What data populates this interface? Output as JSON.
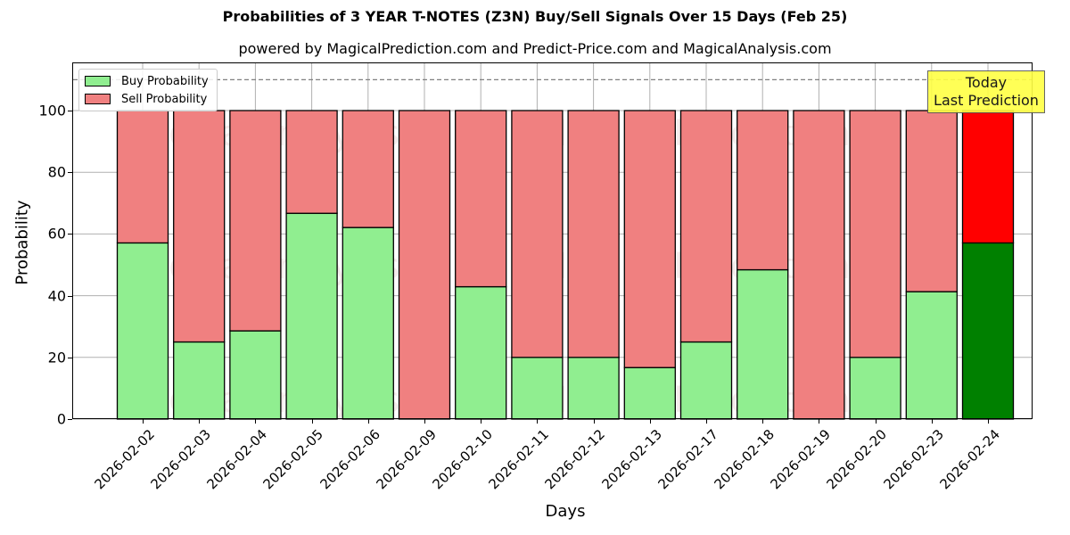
{
  "header": {
    "title": "Probabilities of 3 YEAR T-NOTES (Z3N) Buy/Sell Signals Over 15 Days (Feb 25)",
    "subtitle": "powered by MagicalPrediction.com and Predict-Price.com and MagicalAnalysis.com"
  },
  "legend": {
    "buy_label": "Buy Probability",
    "sell_label": "Sell Probability"
  },
  "annotation": {
    "line1": "Today",
    "line2": "Last Prediction"
  },
  "watermarks": [
    "MagicalAnalysis.com",
    "MagicalPrediction.com"
  ],
  "colors": {
    "buy": "#90ee90",
    "sell": "#f08080",
    "buy_today": "#008000",
    "sell_today": "#ff0000",
    "annotation_bg": "#ffff44"
  },
  "chart_data": {
    "type": "bar",
    "stacked": true,
    "title": "Probabilities of 3 YEAR T-NOTES (Z3N) Buy/Sell Signals Over 15 Days (Feb 25)",
    "subtitle": "powered by MagicalPrediction.com and Predict-Price.com and MagicalAnalysis.com",
    "xlabel": "Days",
    "ylabel": "Probability",
    "ylim": [
      0,
      115
    ],
    "yticks": [
      0,
      20,
      40,
      60,
      80,
      100
    ],
    "grid": true,
    "legend_position": "upper left",
    "reference_line": {
      "y": 110,
      "style": "dashed",
      "color": "#808080"
    },
    "categories": [
      "2026-02-02",
      "2026-02-03",
      "2026-02-04",
      "2026-02-05",
      "2026-02-06",
      "2026-02-09",
      "2026-02-10",
      "2026-02-11",
      "2026-02-12",
      "2026-02-13",
      "2026-02-17",
      "2026-02-18",
      "2026-02-19",
      "2026-02-20",
      "2026-02-23",
      "2026-02-24"
    ],
    "series": [
      {
        "name": "Buy Probability",
        "values": [
          57.1,
          25.0,
          28.6,
          66.7,
          62.1,
          0,
          42.9,
          20.0,
          20.0,
          16.7,
          25.0,
          48.4,
          0,
          20.0,
          41.3,
          57.1
        ]
      },
      {
        "name": "Sell Probability",
        "values": [
          42.9,
          75.0,
          71.4,
          33.3,
          37.9,
          100,
          57.1,
          80.0,
          80.0,
          83.3,
          75.0,
          51.6,
          100,
          80.0,
          58.7,
          42.9
        ]
      }
    ],
    "highlight": {
      "index": 15,
      "label": "Today\nLast Prediction"
    }
  }
}
